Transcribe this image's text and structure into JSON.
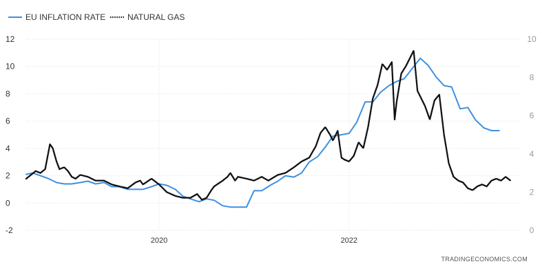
{
  "chart_data": {
    "type": "line",
    "title": "",
    "xlabel": "",
    "ylabel": "",
    "watermark": "TRADINGECONOMICS.COM",
    "x_range": [
      2018.6,
      2023.8
    ],
    "x_ticks": [
      2020,
      2022
    ],
    "x_tick_labels": [
      "2020",
      "2022"
    ],
    "y_left": {
      "lim": [
        -2,
        12
      ],
      "ticks": [
        -2,
        0,
        2,
        4,
        6,
        8,
        10,
        12
      ]
    },
    "y_right": {
      "lim": [
        0,
        10
      ],
      "ticks": [
        0,
        2,
        4,
        6,
        8,
        10
      ]
    },
    "grid": true,
    "legend_position": "top-left",
    "series": [
      {
        "name": "EU INFLATION RATE",
        "axis": "left",
        "color": "#3d8fe0",
        "style": "solid",
        "points": [
          [
            2018.6,
            2.1
          ],
          [
            2018.67,
            2.2
          ],
          [
            2018.75,
            2.0
          ],
          [
            2018.83,
            1.8
          ],
          [
            2018.92,
            1.5
          ],
          [
            2019.0,
            1.4
          ],
          [
            2019.08,
            1.4
          ],
          [
            2019.17,
            1.5
          ],
          [
            2019.25,
            1.6
          ],
          [
            2019.33,
            1.4
          ],
          [
            2019.42,
            1.5
          ],
          [
            2019.5,
            1.2
          ],
          [
            2019.58,
            1.2
          ],
          [
            2019.67,
            1.0
          ],
          [
            2019.75,
            1.0
          ],
          [
            2019.83,
            1.0
          ],
          [
            2019.92,
            1.2
          ],
          [
            2020.0,
            1.4
          ],
          [
            2020.08,
            1.3
          ],
          [
            2020.17,
            1.0
          ],
          [
            2020.25,
            0.5
          ],
          [
            2020.33,
            0.3
          ],
          [
            2020.42,
            0.1
          ],
          [
            2020.5,
            0.3
          ],
          [
            2020.58,
            0.2
          ],
          [
            2020.67,
            -0.2
          ],
          [
            2020.75,
            -0.3
          ],
          [
            2020.83,
            -0.3
          ],
          [
            2020.92,
            -0.3
          ],
          [
            2021.0,
            0.9
          ],
          [
            2021.08,
            0.9
          ],
          [
            2021.17,
            1.3
          ],
          [
            2021.25,
            1.6
          ],
          [
            2021.33,
            2.0
          ],
          [
            2021.42,
            1.9
          ],
          [
            2021.5,
            2.2
          ],
          [
            2021.58,
            3.0
          ],
          [
            2021.67,
            3.4
          ],
          [
            2021.75,
            4.1
          ],
          [
            2021.83,
            4.9
          ],
          [
            2021.92,
            5.0
          ],
          [
            2022.0,
            5.1
          ],
          [
            2022.08,
            5.9
          ],
          [
            2022.17,
            7.4
          ],
          [
            2022.25,
            7.4
          ],
          [
            2022.33,
            8.1
          ],
          [
            2022.42,
            8.6
          ],
          [
            2022.5,
            8.9
          ],
          [
            2022.58,
            9.1
          ],
          [
            2022.67,
            9.9
          ],
          [
            2022.75,
            10.6
          ],
          [
            2022.83,
            10.1
          ],
          [
            2022.92,
            9.2
          ],
          [
            2023.0,
            8.6
          ],
          [
            2023.08,
            8.5
          ],
          [
            2023.17,
            6.9
          ],
          [
            2023.25,
            7.0
          ],
          [
            2023.33,
            6.1
          ],
          [
            2023.42,
            5.5
          ],
          [
            2023.5,
            5.3
          ],
          [
            2023.58,
            5.3
          ]
        ]
      },
      {
        "name": "NATURAL GAS",
        "axis": "right",
        "color": "#111111",
        "style": "dotted",
        "points": [
          [
            2018.6,
            2.7
          ],
          [
            2018.65,
            2.9
          ],
          [
            2018.7,
            3.1
          ],
          [
            2018.75,
            3.0
          ],
          [
            2018.8,
            3.2
          ],
          [
            2018.85,
            4.5
          ],
          [
            2018.88,
            4.3
          ],
          [
            2018.92,
            3.6
          ],
          [
            2018.95,
            3.2
          ],
          [
            2019.0,
            3.3
          ],
          [
            2019.04,
            3.1
          ],
          [
            2019.08,
            2.8
          ],
          [
            2019.12,
            2.7
          ],
          [
            2019.17,
            2.9
          ],
          [
            2019.25,
            2.8
          ],
          [
            2019.33,
            2.6
          ],
          [
            2019.42,
            2.6
          ],
          [
            2019.5,
            2.4
          ],
          [
            2019.58,
            2.3
          ],
          [
            2019.67,
            2.2
          ],
          [
            2019.75,
            2.5
          ],
          [
            2019.8,
            2.6
          ],
          [
            2019.83,
            2.4
          ],
          [
            2019.92,
            2.7
          ],
          [
            2020.0,
            2.4
          ],
          [
            2020.08,
            2.0
          ],
          [
            2020.17,
            1.8
          ],
          [
            2020.25,
            1.7
          ],
          [
            2020.33,
            1.7
          ],
          [
            2020.4,
            1.9
          ],
          [
            2020.45,
            1.6
          ],
          [
            2020.5,
            1.7
          ],
          [
            2020.55,
            2.1
          ],
          [
            2020.58,
            2.3
          ],
          [
            2020.67,
            2.6
          ],
          [
            2020.72,
            2.8
          ],
          [
            2020.75,
            3.0
          ],
          [
            2020.8,
            2.6
          ],
          [
            2020.83,
            2.8
          ],
          [
            2020.92,
            2.7
          ],
          [
            2021.0,
            2.6
          ],
          [
            2021.08,
            2.8
          ],
          [
            2021.15,
            2.6
          ],
          [
            2021.25,
            2.9
          ],
          [
            2021.33,
            3.0
          ],
          [
            2021.42,
            3.3
          ],
          [
            2021.5,
            3.6
          ],
          [
            2021.58,
            3.8
          ],
          [
            2021.65,
            4.4
          ],
          [
            2021.7,
            5.1
          ],
          [
            2021.75,
            5.4
          ],
          [
            2021.8,
            5.0
          ],
          [
            2021.83,
            4.7
          ],
          [
            2021.88,
            5.2
          ],
          [
            2021.92,
            3.8
          ],
          [
            2021.95,
            3.7
          ],
          [
            2022.0,
            3.6
          ],
          [
            2022.05,
            3.9
          ],
          [
            2022.1,
            4.6
          ],
          [
            2022.15,
            4.3
          ],
          [
            2022.2,
            5.4
          ],
          [
            2022.25,
            6.9
          ],
          [
            2022.3,
            7.6
          ],
          [
            2022.35,
            8.7
          ],
          [
            2022.4,
            8.4
          ],
          [
            2022.45,
            8.8
          ],
          [
            2022.48,
            5.8
          ],
          [
            2022.5,
            6.7
          ],
          [
            2022.55,
            8.2
          ],
          [
            2022.6,
            8.6
          ],
          [
            2022.65,
            9.1
          ],
          [
            2022.68,
            9.4
          ],
          [
            2022.72,
            7.3
          ],
          [
            2022.75,
            7.0
          ],
          [
            2022.8,
            6.5
          ],
          [
            2022.85,
            5.8
          ],
          [
            2022.9,
            6.8
          ],
          [
            2022.95,
            7.1
          ],
          [
            2023.0,
            5.0
          ],
          [
            2023.05,
            3.5
          ],
          [
            2023.1,
            2.8
          ],
          [
            2023.15,
            2.6
          ],
          [
            2023.2,
            2.5
          ],
          [
            2023.25,
            2.2
          ],
          [
            2023.3,
            2.1
          ],
          [
            2023.35,
            2.3
          ],
          [
            2023.4,
            2.4
          ],
          [
            2023.45,
            2.3
          ],
          [
            2023.5,
            2.6
          ],
          [
            2023.55,
            2.7
          ],
          [
            2023.6,
            2.6
          ],
          [
            2023.65,
            2.8
          ],
          [
            2023.7,
            2.6
          ]
        ]
      }
    ]
  }
}
